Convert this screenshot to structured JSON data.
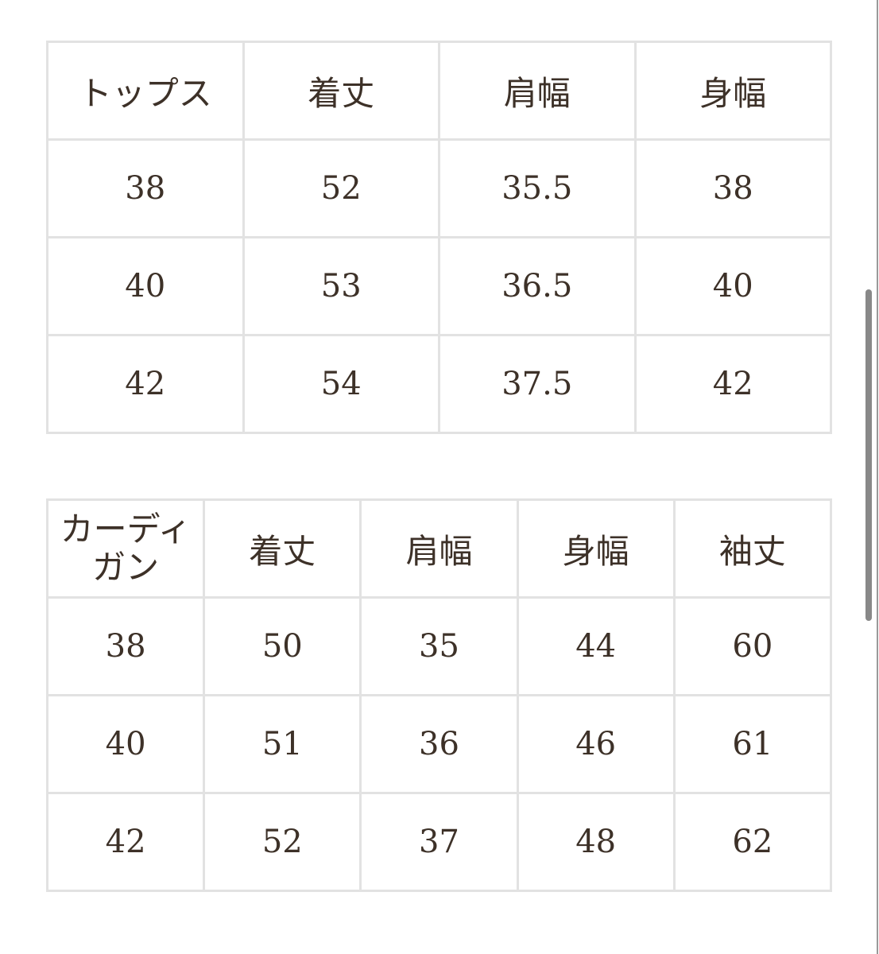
{
  "tops_table": {
    "headers": [
      "トップス",
      "着丈",
      "肩幅",
      "身幅"
    ],
    "rows": [
      [
        "38",
        "52",
        "35.5",
        "38"
      ],
      [
        "40",
        "53",
        "36.5",
        "40"
      ],
      [
        "42",
        "54",
        "37.5",
        "42"
      ]
    ]
  },
  "cardigan_table": {
    "headers": [
      "カーディガン",
      "着丈",
      "肩幅",
      "身幅",
      "袖丈"
    ],
    "rows": [
      [
        "38",
        "50",
        "35",
        "44",
        "60"
      ],
      [
        "40",
        "51",
        "36",
        "46",
        "61"
      ],
      [
        "42",
        "52",
        "37",
        "48",
        "62"
      ]
    ]
  },
  "colors": {
    "text": "#3d3128",
    "border": "#e2e2e2",
    "scrollbar": "#888888"
  }
}
